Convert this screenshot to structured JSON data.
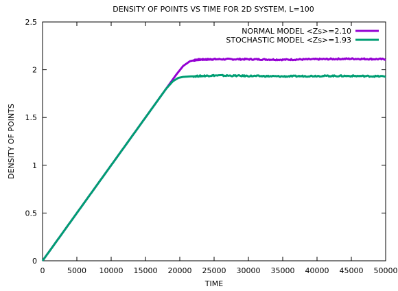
{
  "chart_data": {
    "type": "line",
    "title": "DENSITY OF POINTS VS TIME FOR 2D SYSTEM, L=100",
    "xlabel": "TIME",
    "ylabel": "DENSITY OF POINTS",
    "xlim": [
      0,
      50000
    ],
    "ylim": [
      0,
      2.5
    ],
    "xticks": [
      0,
      5000,
      10000,
      15000,
      20000,
      25000,
      30000,
      35000,
      40000,
      45000,
      50000
    ],
    "yticks": [
      0,
      0.5,
      1,
      1.5,
      2,
      2.5
    ],
    "ytick_labels": [
      "0",
      "0.5",
      "1",
      "1.5",
      "2",
      "2.5"
    ],
    "grid": false,
    "legend_position": "top-right",
    "series": [
      {
        "name": "NORMAL MODEL <Zs>=2.10",
        "color": "#9400d3",
        "x": [
          0,
          5000,
          10000,
          15000,
          18000,
          19500,
          20500,
          21500,
          22500,
          25000,
          30000,
          35000,
          40000,
          45000,
          50000
        ],
        "y": [
          0,
          0.5,
          1.0,
          1.5,
          1.8,
          1.95,
          2.04,
          2.09,
          2.105,
          2.11,
          2.11,
          2.105,
          2.11,
          2.115,
          2.11
        ]
      },
      {
        "name": "STOCHASTIC MODEL <Zs>=1.93",
        "color": "#009e73",
        "x": [
          0,
          5000,
          10000,
          15000,
          18000,
          19000,
          19800,
          20500,
          21500,
          25000,
          30000,
          35000,
          40000,
          45000,
          50000
        ],
        "y": [
          0,
          0.5,
          1.0,
          1.5,
          1.8,
          1.88,
          1.915,
          1.925,
          1.93,
          1.94,
          1.935,
          1.93,
          1.935,
          1.935,
          1.93
        ]
      }
    ]
  }
}
